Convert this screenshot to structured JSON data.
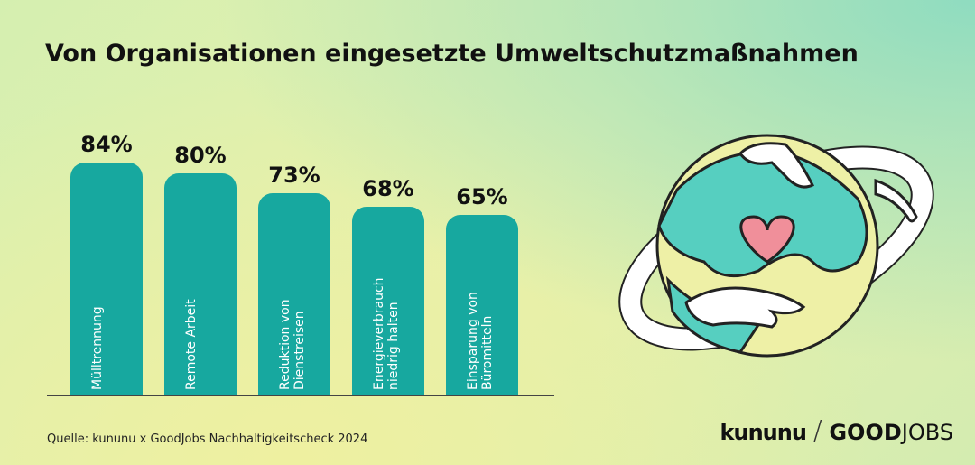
{
  "chart_data": {
    "type": "bar",
    "title": "Von Organisationen eingesetzte Umweltschutzmaßnahmen",
    "categories": [
      "Mülltrennung",
      "Remote Arbeit",
      "Reduktion von Dienstreisen",
      "Energieverbrauch niedrig halten",
      "Einsparung von Büromitteln"
    ],
    "values": [
      84,
      80,
      73,
      68,
      65
    ],
    "value_labels": [
      "84%",
      "80%",
      "73%",
      "68%",
      "65%"
    ],
    "color": "#17a89f"
  },
  "footer": {
    "source": "Quelle: kununu x GoodJobs Nachhaltigkeitscheck 2024",
    "logos": [
      "kununu",
      "GOOD",
      "JOBS"
    ]
  }
}
